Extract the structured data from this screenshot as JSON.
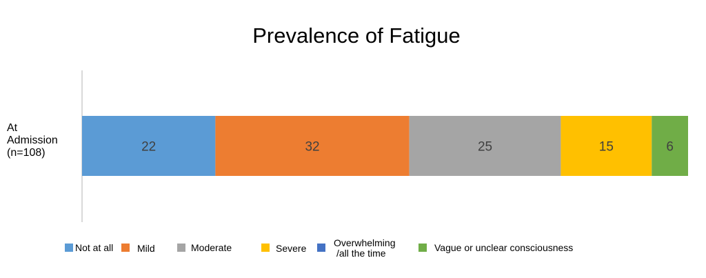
{
  "chart_data": {
    "type": "bar",
    "orientation": "horizontal-stacked",
    "title": "Prevalence of Fatigue",
    "categories": [
      [
        "At",
        "Admission",
        "(n=108)"
      ]
    ],
    "series": [
      {
        "name": "Not at all",
        "values": [
          22
        ],
        "color": "#5B9BD5",
        "label": "22"
      },
      {
        "name": "Mild",
        "values": [
          32
        ],
        "color": "#ED7D31",
        "label": "32"
      },
      {
        "name": "Moderate",
        "values": [
          25
        ],
        "color": "#A5A5A5",
        "label": "25"
      },
      {
        "name": "Severe",
        "values": [
          15
        ],
        "color": "#FFC000",
        "label": "15"
      },
      {
        "name": [
          "Overwhelming",
          "/all the time"
        ],
        "values": [
          0
        ],
        "color": "#4472C4",
        "label": ""
      },
      {
        "name": "Vague or unclear consciousness",
        "values": [
          6
        ],
        "color": "#70AD47",
        "label": "6"
      }
    ],
    "xlim": [
      0,
      100
    ],
    "grid": false,
    "legend_position": "bottom"
  }
}
